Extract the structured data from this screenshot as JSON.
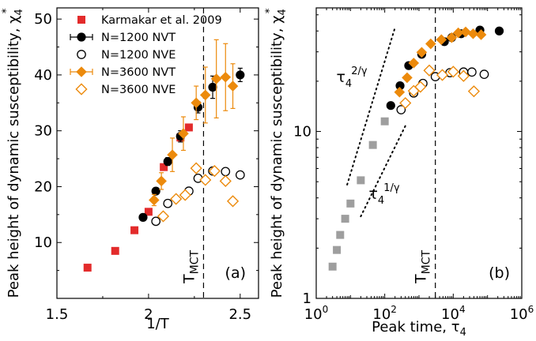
{
  "colors": {
    "red": "#e32b2b",
    "orange": "#ec8a0c",
    "gray": "#9e9e9e",
    "black": "#000000"
  },
  "chart_data": [
    {
      "type": "scatter",
      "panel_label": "(a)",
      "xlabel": "1/T",
      "ylabel": "Peak height of dynamic susceptibility, χ",
      "ylabel_sub": "4",
      "ylabel_sup": "*",
      "xlim": [
        1.5,
        2.6
      ],
      "ylim": [
        0,
        52
      ],
      "xticks": [
        1.5,
        2.0,
        2.5
      ],
      "xtick_labels": [
        "1.5",
        "2",
        "2.5"
      ],
      "yticks": [
        10,
        20,
        30,
        40,
        50
      ],
      "ytick_labels": [
        "10",
        "20",
        "30",
        "40",
        "50"
      ],
      "vline": {
        "x": 2.3,
        "label": "T",
        "label_sub": "MCT"
      },
      "legend": {
        "position": "top-left"
      },
      "series": [
        {
          "name": "Karmakar et al. 2009",
          "marker": "square",
          "color": "red",
          "x": [
            1.667,
            1.818,
            1.923,
            2.0,
            2.083,
            2.174,
            2.22
          ],
          "y": [
            5.5,
            8.5,
            12.2,
            15.5,
            23.5,
            28.8,
            30.6
          ]
        },
        {
          "name": "N=1200 NVT",
          "marker": "circle-filled",
          "color": "black",
          "errorbar": true,
          "x": [
            1.97,
            2.04,
            2.105,
            2.174,
            2.27,
            2.35,
            2.5
          ],
          "y": [
            14.5,
            19.2,
            24.5,
            29.0,
            34.2,
            37.8,
            40.0
          ],
          "err": [
            0.4,
            0.6,
            0.7,
            1.0,
            1.0,
            2.0,
            1.2
          ]
        },
        {
          "name": "N=1200 NVE",
          "marker": "circle-open",
          "color": "black",
          "x": [
            2.04,
            2.105,
            2.22,
            2.27,
            2.35,
            2.42,
            2.5
          ],
          "y": [
            13.8,
            17.0,
            19.2,
            21.5,
            22.8,
            22.7,
            22.1
          ]
        },
        {
          "name": "N=3600 NVT",
          "marker": "diamond-filled",
          "color": "orange",
          "errorbar": true,
          "x": [
            2.03,
            2.07,
            2.13,
            2.19,
            2.26,
            2.31,
            2.37,
            2.42,
            2.46
          ],
          "y": [
            17.6,
            21.0,
            25.7,
            29.5,
            35.0,
            36.4,
            39.3,
            39.6,
            38.0
          ],
          "err": [
            1.0,
            1.5,
            3.0,
            3.0,
            3.0,
            5.0,
            7.0,
            6.0,
            4.0
          ]
        },
        {
          "name": "N=3600 NVE",
          "marker": "diamond-open",
          "color": "orange",
          "x": [
            2.08,
            2.15,
            2.2,
            2.26,
            2.31,
            2.36,
            2.42,
            2.46
          ],
          "y": [
            14.7,
            17.8,
            18.5,
            23.3,
            21.2,
            22.8,
            21.0,
            17.4
          ]
        }
      ]
    },
    {
      "type": "scatter",
      "panel_label": "(b)",
      "xlabel": "Peak time, τ",
      "xlabel_sub": "4",
      "ylabel": "Peak height of dynamic susceptibility, χ",
      "ylabel_sub": "4",
      "ylabel_sup": "*",
      "xscale": "log",
      "yscale": "log",
      "xlim": [
        1,
        1000000
      ],
      "ylim": [
        1,
        55
      ],
      "xticks": [
        1,
        100,
        10000,
        1000000
      ],
      "xtick_labels": [
        "10",
        "10",
        "10",
        "10"
      ],
      "xtick_exponents": [
        "0",
        "2",
        "4",
        "6"
      ],
      "yticks": [
        1,
        10
      ],
      "ytick_labels": [
        "1",
        "10"
      ],
      "vline": {
        "x": 3000,
        "label": "T",
        "label_sub": "MCT"
      },
      "guides": [
        {
          "label": "τ",
          "label_sub": "4",
          "label_sup": "2/γ",
          "x": [
            8,
            200
          ],
          "y": [
            4.8,
            42
          ]
        },
        {
          "label": "τ",
          "label_sub": "4",
          "label_sup": "1/γ",
          "x": [
            20,
            400
          ],
          "y": [
            3.1,
            10.8
          ]
        }
      ],
      "series": [
        {
          "name": "gray squares",
          "marker": "square",
          "color": "gray",
          "x": [
            3,
            4,
            5,
            7,
            10,
            20,
            45,
            100
          ],
          "y": [
            1.55,
            1.95,
            2.4,
            3.0,
            3.7,
            5.1,
            8.3,
            11.5
          ]
        },
        {
          "name": "N=1200 NVT",
          "marker": "circle-filled",
          "color": "black",
          "x": [
            150,
            280,
            500,
            1200,
            5500,
            9000,
            17000,
            60000,
            220000
          ],
          "y": [
            14.3,
            18.8,
            24.8,
            29.0,
            34.5,
            36.5,
            38.5,
            40.5,
            40.0
          ]
        },
        {
          "name": "N=1200 NVE",
          "marker": "circle-open",
          "color": "black",
          "x": [
            300,
            700,
            1300,
            3000,
            8000,
            20000,
            35000,
            80000
          ],
          "y": [
            13.5,
            17.0,
            19.4,
            21.3,
            22.5,
            22.7,
            22.7,
            22.0
          ]
        },
        {
          "name": "N=3600 NVT",
          "marker": "diamond-filled",
          "color": "orange",
          "x": [
            270,
            450,
            700,
            1200,
            2200,
            4500,
            9000,
            14000,
            23000,
            38000,
            65000
          ],
          "y": [
            17.2,
            21.0,
            25.7,
            29.8,
            33.5,
            35.5,
            36.5,
            39.0,
            39.5,
            38.5,
            38.0
          ]
        },
        {
          "name": "N=3600 NVE",
          "marker": "diamond-open",
          "color": "orange",
          "x": [
            400,
            700,
            1100,
            2000,
            4800,
            10000,
            20000,
            40000
          ],
          "y": [
            14.8,
            17.5,
            18.5,
            23.2,
            21.8,
            22.8,
            21.5,
            17.4
          ]
        }
      ]
    }
  ]
}
